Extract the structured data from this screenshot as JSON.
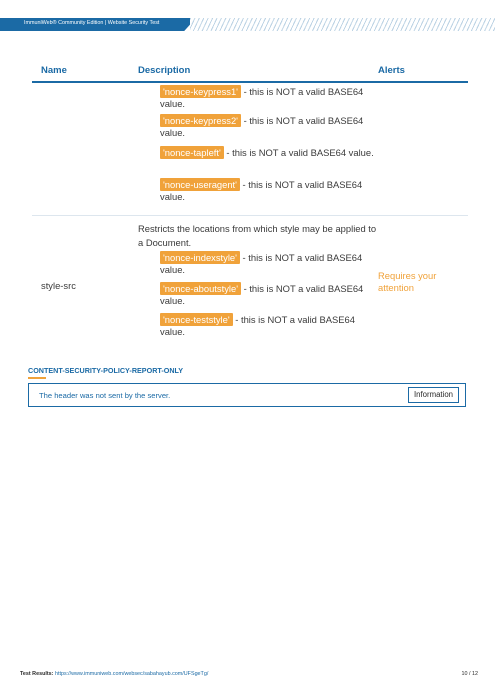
{
  "header": {
    "title": "ImmuniWeb® Community Edition | Website Security Test"
  },
  "table": {
    "columns": [
      "Name",
      "Description",
      "Alerts"
    ],
    "previous_row_entries": [
      {
        "tag": "'nonce-keypress1'",
        "text": " - this is NOT a valid BASE64 value."
      },
      {
        "tag": "'nonce-keypress2'",
        "text": " - this is NOT a valid BASE64 value."
      },
      {
        "tag": "'nonce-tapleft'",
        "text": " - this is NOT a valid BASE64 value."
      },
      {
        "tag": "'nonce-useragent'",
        "text": " - this is NOT a valid BASE64 value."
      }
    ],
    "style_row": {
      "name": "style-src",
      "description": "Restricts the locations from which style may be applied to a Document.",
      "entries": [
        {
          "tag": "'nonce-indexstyle'",
          "text": " - this is NOT a valid BASE64 value."
        },
        {
          "tag": "'nonce-aboutstyle'",
          "text": " - this is NOT a valid BASE64 value."
        },
        {
          "tag": "'nonce-teststyle'",
          "text": " - this is NOT a valid BASE64 value."
        }
      ],
      "alert": "Requires your attention"
    }
  },
  "section": {
    "title": "CONTENT-SECURITY-POLICY-REPORT-ONLY",
    "message": "The header was not sent by the server.",
    "button_label": "Information"
  },
  "footer": {
    "label": "Test Results:",
    "url": "https://www.immuniweb.com/websec/sabahayub.com/UFSgeTg/",
    "page": "10 / 12"
  },
  "colors": {
    "brand_blue": "#1b6aa5",
    "alert_orange": "#f0a23a"
  }
}
